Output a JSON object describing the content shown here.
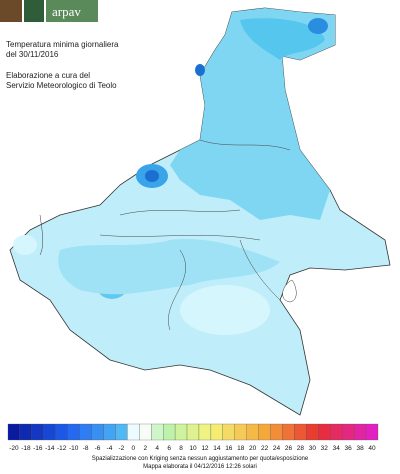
{
  "header": {
    "logo_text": "arpav",
    "title": "Temperatura minima giornaliera",
    "date": "del 30/11/2016",
    "credit_1": "Elaborazione a cura del",
    "credit_2": "Servizio Meteorologico di Teolo"
  },
  "legend": {
    "labels": [
      -20,
      -18,
      -16,
      -14,
      -12,
      -10,
      -8,
      -6,
      -4,
      -2,
      0,
      2,
      4,
      6,
      8,
      10,
      12,
      14,
      16,
      18,
      20,
      22,
      24,
      26,
      28,
      30,
      32,
      34,
      36,
      38,
      40
    ]
  },
  "footer": {
    "line_1": "Spazializzazione con Kriging senza nessun aggiustamento per quota/esposizione",
    "line_2": "Mappa elaborata il 04/12/2016 12:26 solari"
  }
}
